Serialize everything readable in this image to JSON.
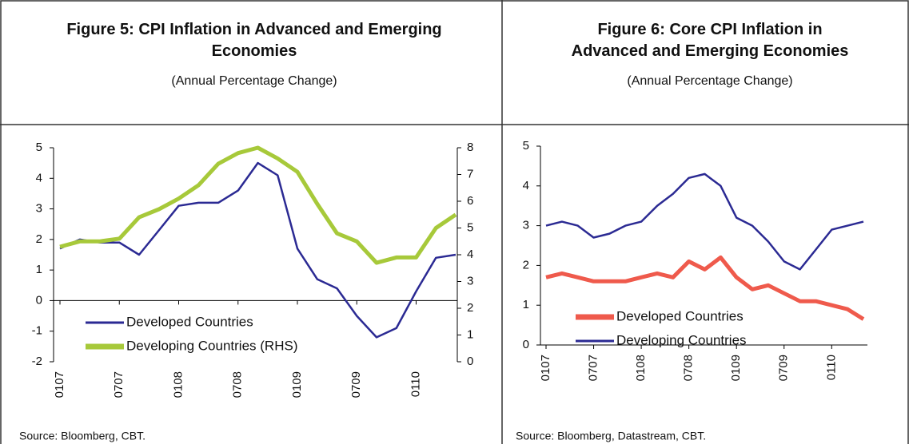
{
  "chart_data": [
    {
      "type": "line",
      "title": "Figure 5: CPI Inflation in Advanced and Emerging Economies",
      "subtitle": "(Annual Percentage Change)",
      "source": "Source: Bloomberg, CBT.",
      "categories": [
        "0107",
        null,
        null,
        "0707",
        null,
        null,
        "0108",
        null,
        null,
        "0708",
        null,
        null,
        "0109",
        null,
        null,
        "0709",
        null,
        null,
        "0110",
        null,
        null
      ],
      "series": [
        {
          "name": "Developed Countries",
          "color": "#2b2a93",
          "values": [
            1.7,
            2.0,
            1.9,
            1.9,
            1.5,
            2.3,
            3.1,
            3.2,
            3.2,
            3.6,
            4.5,
            4.1,
            1.7,
            0.7,
            0.4,
            -0.5,
            -1.2,
            -0.9,
            0.3,
            1.4,
            1.5
          ]
        },
        {
          "name": "Developing Countries (RHS)",
          "color": "#a7c93a",
          "axis": "y2",
          "values": [
            4.3,
            4.5,
            4.5,
            4.6,
            5.4,
            5.7,
            6.1,
            6.6,
            7.4,
            7.8,
            8.0,
            7.6,
            7.1,
            5.9,
            4.8,
            4.5,
            3.7,
            3.9,
            3.9,
            5.0,
            5.5
          ]
        }
      ],
      "ylim": [
        -2,
        5
      ],
      "yticks": [
        -2,
        -1,
        0,
        1,
        2,
        3,
        4,
        5
      ],
      "y2lim": [
        0,
        8
      ],
      "y2ticks": [
        0,
        1,
        2,
        3,
        4,
        5,
        6,
        7,
        8
      ],
      "legend": "lower left",
      "grid": false
    },
    {
      "type": "line",
      "title": "Figure 6: Core CPI Inflation in Advanced and Emerging Economies",
      "subtitle": "(Annual Percentage Change)",
      "source": "Source: Bloomberg, Datastream, CBT.",
      "categories": [
        "0107",
        null,
        null,
        "0707",
        null,
        null,
        "0108",
        null,
        null,
        "0708",
        null,
        null,
        "0109",
        null,
        null,
        "0709",
        null,
        null,
        "0110",
        null,
        null
      ],
      "series": [
        {
          "name": "Developed Countries",
          "color": "#ef5a4c",
          "values": [
            1.7,
            1.8,
            1.7,
            1.6,
            1.6,
            1.6,
            1.7,
            1.8,
            1.7,
            2.1,
            1.9,
            2.2,
            1.7,
            1.4,
            1.5,
            1.3,
            1.1,
            1.1,
            1.0,
            0.9,
            0.65
          ]
        },
        {
          "name": "Developing Countries",
          "color": "#2b2a93",
          "values": [
            3.0,
            3.1,
            3.0,
            2.7,
            2.8,
            3.0,
            3.1,
            3.5,
            3.8,
            4.2,
            4.3,
            4.0,
            3.2,
            3.0,
            2.6,
            2.1,
            1.9,
            2.4,
            2.9,
            3.0,
            3.1
          ]
        }
      ],
      "ylim": [
        0,
        5
      ],
      "yticks": [
        0,
        1,
        2,
        3,
        4,
        5
      ],
      "legend": "lower left",
      "grid": false
    }
  ]
}
